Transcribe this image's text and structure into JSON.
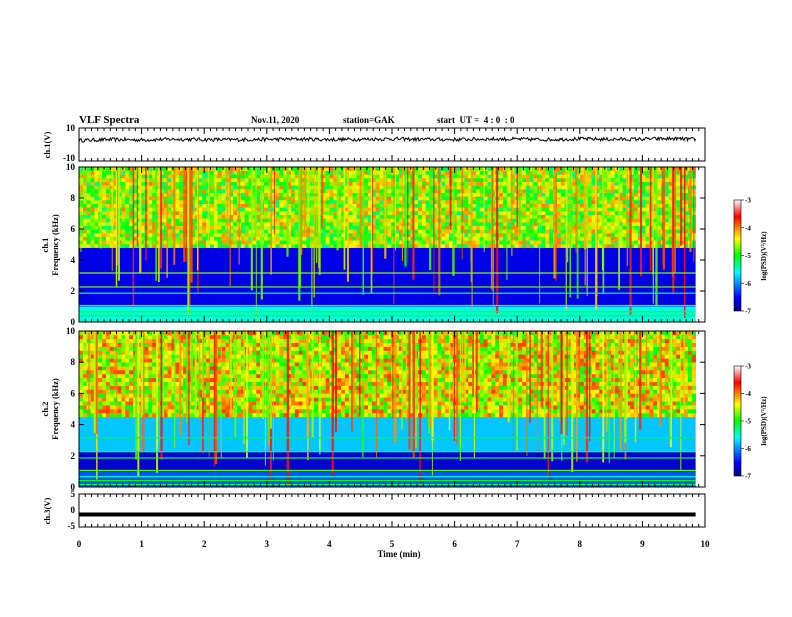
{
  "header": {
    "title": "VLF Spectra",
    "date": "Nov.11, 2020",
    "station": "station=GAK",
    "start": "start  UT =  4 : 0  : 0"
  },
  "chart_data": [
    {
      "type": "line",
      "name": "ch1-voltage",
      "ylabel": "ch.1(V)",
      "ylim": [
        -10,
        10
      ],
      "ytick_labels": [
        "10",
        "-10"
      ],
      "x": [
        0,
        0.5,
        1,
        1.5,
        2,
        2.5,
        3,
        3.5,
        4,
        4.5,
        5,
        5.5,
        6,
        6.5,
        7,
        7.5,
        8,
        8.5,
        9,
        9.5,
        9.85
      ],
      "y": [
        2.5,
        3,
        2.8,
        3.2,
        3,
        2.9,
        3.1,
        3.3,
        3,
        3.2,
        3.4,
        3.1,
        3,
        3.3,
        3.2,
        3,
        3.4,
        3.1,
        3.3,
        3.5,
        3.2
      ]
    },
    {
      "type": "heatmap",
      "name": "ch1-spectrogram",
      "ylabel_top": "ch.1",
      "ylabel": "Frequency (kHz)",
      "ylim": [
        0,
        10
      ],
      "yticks": [
        "0",
        "2",
        "4",
        "6",
        "8",
        "10"
      ],
      "colorbar": {
        "label": "log(PSD)(V²/Hz)",
        "ticks": [
          "-3",
          "-4",
          "-5",
          "-6",
          "-7"
        ],
        "range": [
          -7,
          -3
        ]
      },
      "bands": [
        {
          "from": 0,
          "to": 1,
          "level": -5.5
        },
        {
          "from": 1,
          "to": 4.8,
          "level": -6.6
        },
        {
          "from": 4.8,
          "to": 10,
          "level": -4.7
        }
      ]
    },
    {
      "type": "heatmap",
      "name": "ch2-spectrogram",
      "ylabel_top": "ch.2",
      "ylabel": "Frequency (kHz)",
      "ylim": [
        0,
        10
      ],
      "yticks": [
        "0",
        "2",
        "4",
        "6",
        "8",
        "10"
      ],
      "colorbar": {
        "label": "log(PSD)(V²/Hz)",
        "ticks": [
          "-3",
          "-4",
          "-5",
          "-6",
          "-7"
        ],
        "range": [
          -7,
          -3
        ]
      },
      "bands": [
        {
          "from": 0,
          "to": 1,
          "level": -6.2
        },
        {
          "from": 1,
          "to": 2.3,
          "level": -6.7
        },
        {
          "from": 2.3,
          "to": 4.5,
          "level": -5.8
        },
        {
          "from": 4.5,
          "to": 10,
          "level": -4.5
        }
      ]
    },
    {
      "type": "line",
      "name": "ch3-voltage",
      "ylabel": "ch.3(V)",
      "ylim": [
        -5,
        5
      ],
      "ytick_labels": [
        "5",
        "0",
        "-5"
      ],
      "x": [
        0,
        9.85
      ],
      "y": [
        -1.2,
        -1.2
      ]
    }
  ],
  "xaxis": {
    "label": "Time (min)",
    "range": [
      0,
      10
    ],
    "ticks": [
      "0",
      "1",
      "2",
      "3",
      "4",
      "5",
      "6",
      "7",
      "8",
      "9",
      "10"
    ]
  },
  "colors": {
    "trace": "#000000",
    "axes": "#000000"
  }
}
